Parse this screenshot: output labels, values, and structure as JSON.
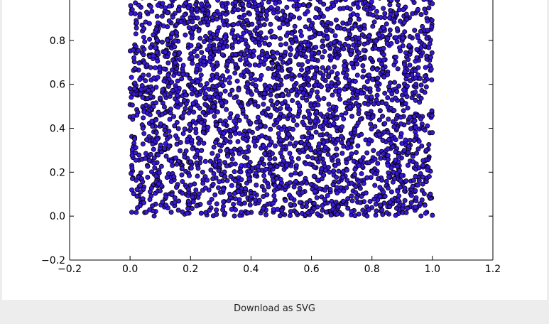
{
  "chart_data": {
    "type": "scatter",
    "title": "",
    "xlabel": "",
    "ylabel": "",
    "xlim": [
      -0.2,
      1.2
    ],
    "ylim": [
      -0.2,
      1.0
    ],
    "xticks": [
      -0.2,
      0.0,
      0.2,
      0.4,
      0.6,
      0.8,
      1.0,
      1.2
    ],
    "xtick_labels": [
      "−0.2",
      "0.0",
      "0.2",
      "0.4",
      "0.6",
      "0.8",
      "1.0",
      "1.2"
    ],
    "yticks": [
      -0.2,
      0.0,
      0.2,
      0.4,
      0.6,
      0.8
    ],
    "ytick_labels": [
      "−0.2",
      "0.0",
      "0.2",
      "0.4",
      "0.6",
      "0.8"
    ],
    "series": [
      {
        "distribution": "uniform random points on [0,1] x [0,1]",
        "approx_count": 3000,
        "color": "#3a16d6",
        "edgecolor": "#000000"
      }
    ],
    "grid": false
  },
  "download_label": "Download as SVG"
}
